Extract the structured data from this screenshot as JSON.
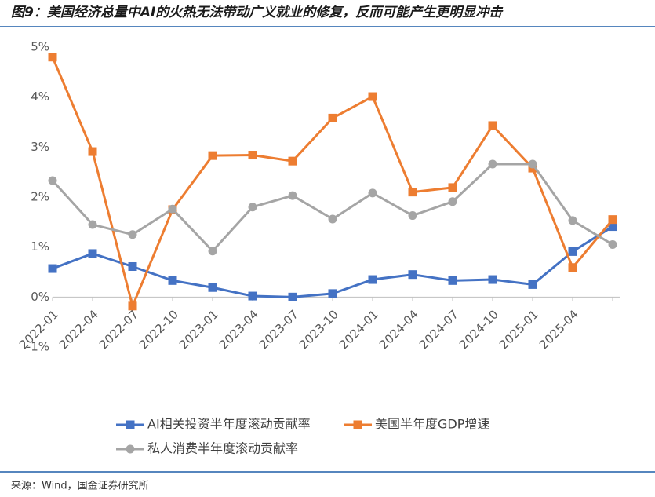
{
  "chart_data": {
    "type": "line",
    "title": "图9：美国经济总量中AI的火热无法带动广义就业的修复，反而可能产生更明显冲击",
    "source": "来源：Wind，国金证券研究所",
    "categories": [
      "2022-01",
      "2022-04",
      "2022-07",
      "2022-10",
      "2023-01",
      "2023-04",
      "2023-07",
      "2023-10",
      "2024-01",
      "2024-04",
      "2024-07",
      "2024-10",
      "2025-01",
      "2025-04",
      null
    ],
    "series": [
      {
        "name": "AI相关投资半年度滚动贡献率",
        "color": "#4472c4",
        "marker": "square",
        "values": [
          0.57,
          0.87,
          0.61,
          0.33,
          0.19,
          0.02,
          0.0,
          0.07,
          0.35,
          0.45,
          0.33,
          0.35,
          0.25,
          0.91,
          1.41
        ]
      },
      {
        "name": "美国半年度GDP增速",
        "color": "#ed7d31",
        "marker": "square",
        "values": [
          4.8,
          2.91,
          -0.18,
          1.75,
          2.83,
          2.84,
          2.72,
          3.58,
          4.01,
          2.1,
          2.19,
          3.43,
          2.58,
          0.59,
          1.55
        ]
      },
      {
        "name": "私人消费半年度滚动贡献率",
        "color": "#a5a5a5",
        "marker": "circle",
        "values": [
          2.33,
          1.45,
          1.25,
          1.76,
          0.92,
          1.8,
          2.03,
          1.56,
          2.08,
          1.63,
          1.91,
          2.66,
          2.66,
          1.53,
          1.05
        ]
      }
    ],
    "ylim": [
      -1,
      5
    ],
    "yticks": [
      {
        "value": -1,
        "label": "-1%"
      },
      {
        "value": 0,
        "label": "0%"
      },
      {
        "value": 1,
        "label": "1%"
      },
      {
        "value": 2,
        "label": "2%"
      },
      {
        "value": 3,
        "label": "3%"
      },
      {
        "value": 4,
        "label": "4%"
      },
      {
        "value": 5,
        "label": "5%"
      }
    ],
    "grid": false
  }
}
